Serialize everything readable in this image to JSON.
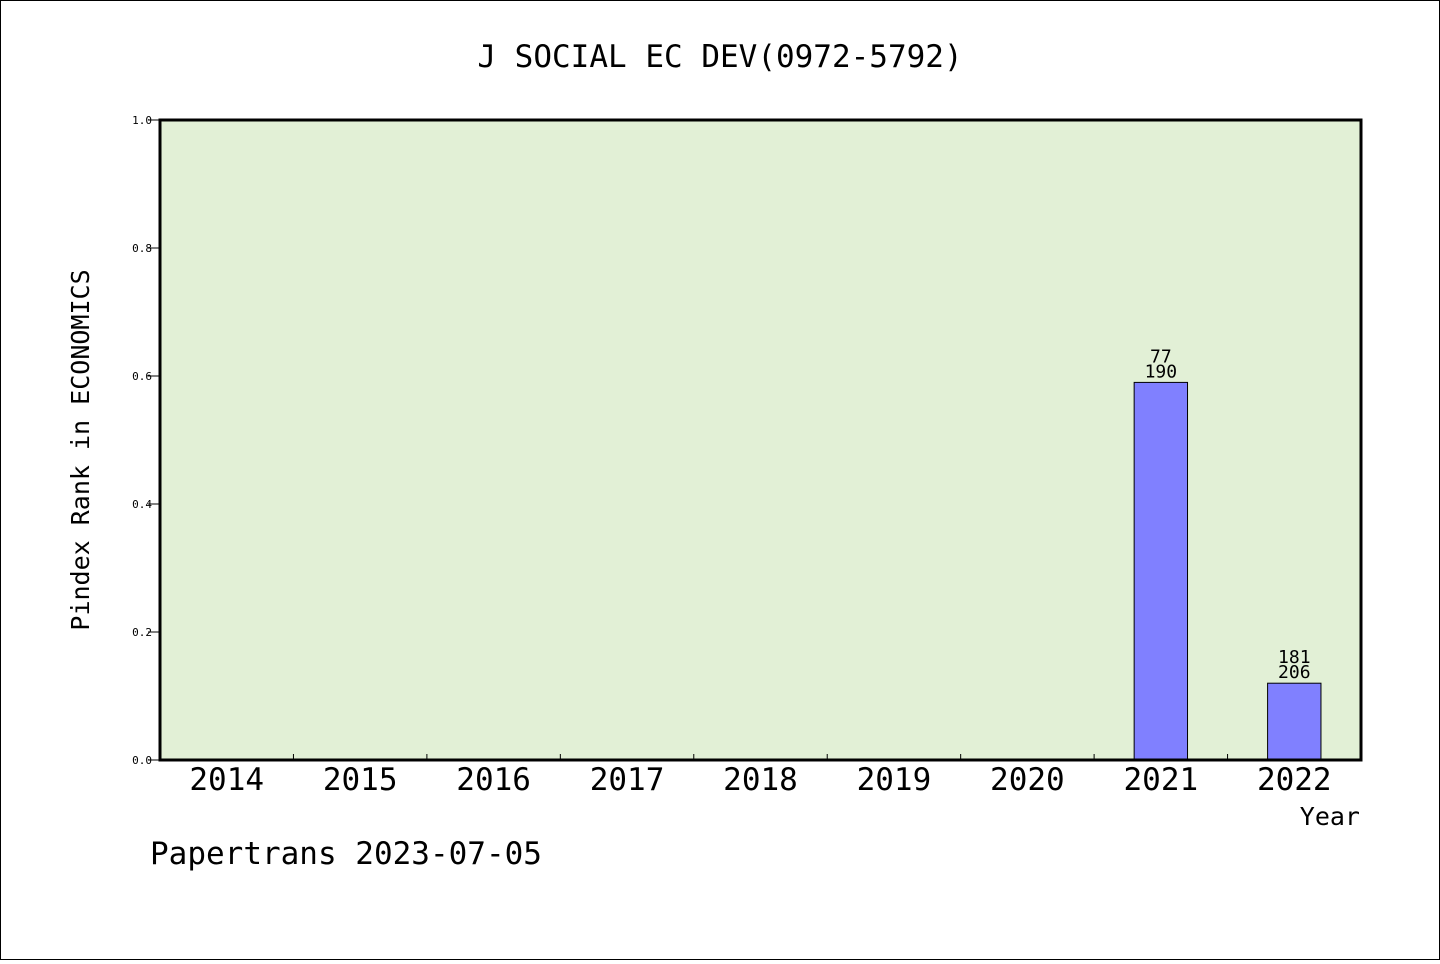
{
  "chart_data": {
    "type": "bar",
    "title": "J SOCIAL EC DEV(0972-5792)",
    "xlabel": "Year",
    "ylabel": "Pindex Rank in ECONOMICS",
    "footer": "Papertrans 2023-07-05",
    "categories": [
      "2014",
      "2015",
      "2016",
      "2017",
      "2018",
      "2019",
      "2020",
      "2021",
      "2022"
    ],
    "values": [
      null,
      null,
      null,
      null,
      null,
      null,
      null,
      0.59,
      0.12
    ],
    "label_top": [
      "",
      "",
      "",
      "",
      "",
      "",
      "",
      "77",
      "181"
    ],
    "label_bottom": [
      "",
      "",
      "",
      "",
      "",
      "",
      "",
      "190",
      "206"
    ],
    "ylim": [
      0,
      1.0
    ],
    "yticks": [
      "0.0",
      "0.2",
      "0.4",
      "0.6",
      "0.8",
      "1.0"
    ],
    "grid": false,
    "legend": "none",
    "colors": {
      "plot_bg": "#e2f0d6",
      "bar": "#8080ff",
      "bar_edge": "#000000"
    }
  }
}
